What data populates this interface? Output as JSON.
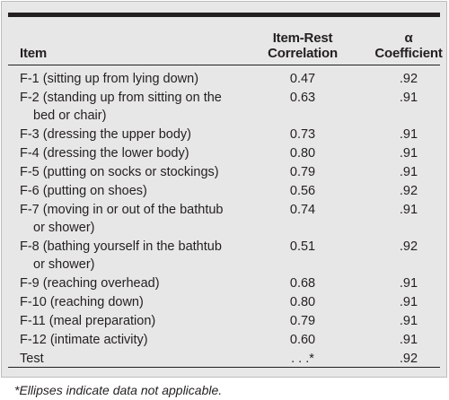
{
  "table": {
    "headers": {
      "item": "Item",
      "corr_line1": "Item-Rest",
      "corr_line2": "Correlation",
      "alpha_line1": "α",
      "alpha_line2": "Coefficient"
    },
    "rows": [
      {
        "item": "F-1 (sitting up from lying down)",
        "item_cont": "",
        "corr": "0.47",
        "alpha": ".92"
      },
      {
        "item": "F-2 (standing up from sitting on the",
        "item_cont": "bed or chair)",
        "corr": "0.63",
        "alpha": ".91"
      },
      {
        "item": "F-3 (dressing the upper body)",
        "item_cont": "",
        "corr": "0.73",
        "alpha": ".91"
      },
      {
        "item": "F-4 (dressing the lower body)",
        "item_cont": "",
        "corr": "0.80",
        "alpha": ".91"
      },
      {
        "item": "F-5 (putting on socks or stockings)",
        "item_cont": "",
        "corr": "0.79",
        "alpha": ".91"
      },
      {
        "item": "F-6 (putting on shoes)",
        "item_cont": "",
        "corr": "0.56",
        "alpha": ".92"
      },
      {
        "item": "F-7 (moving in or out of the bathtub",
        "item_cont": "or shower)",
        "corr": "0.74",
        "alpha": ".91"
      },
      {
        "item": "F-8 (bathing yourself in the bathtub",
        "item_cont": "or shower)",
        "corr": "0.51",
        "alpha": ".92"
      },
      {
        "item": "F-9 (reaching overhead)",
        "item_cont": "",
        "corr": "0.68",
        "alpha": ".91"
      },
      {
        "item": "F-10 (reaching down)",
        "item_cont": "",
        "corr": "0.80",
        "alpha": ".91"
      },
      {
        "item": "F-11 (meal preparation)",
        "item_cont": "",
        "corr": "0.79",
        "alpha": ".91"
      },
      {
        "item": "F-12 (intimate activity)",
        "item_cont": "",
        "corr": "0.60",
        "alpha": ".91"
      },
      {
        "item": "Test",
        "item_cont": "",
        "corr": ". . .*",
        "alpha": ".92"
      }
    ]
  },
  "footnote": "*Ellipses indicate data not applicable."
}
